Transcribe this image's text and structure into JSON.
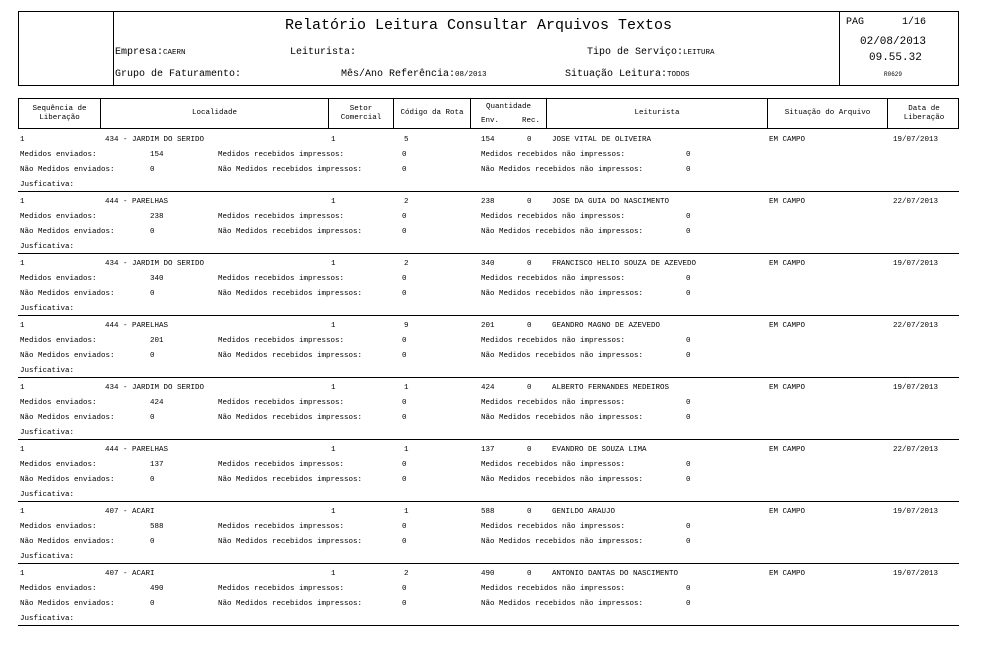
{
  "header": {
    "title": "Relatório Leitura Consultar Arquivos Textos",
    "empresa_label": "Empresa:",
    "empresa_value": "CAERN",
    "leiturista_label": "Leiturista:",
    "leiturista_value": "",
    "tipo_servico_label": "Tipo de Serviço:",
    "tipo_servico_value": "LEITURA",
    "grupo_label": "Grupo de Faturamento:",
    "grupo_value": "",
    "mes_ano_label": "Mês/Ano Referência:",
    "mes_ano_value": "08/2013",
    "situacao_label": "Situação Leitura:",
    "situacao_value": "TODOS",
    "pag_label": "PAG",
    "pag_value": "1/16",
    "date": "02/08/2013",
    "time": "09.55.32",
    "report_code": "R0629"
  },
  "columns": {
    "sequencia": "Sequência de Liberação",
    "localidade": "Localidade",
    "setor": "Setor Comercial",
    "codigo": "Código da Rota",
    "quantidade": "Quantidade",
    "env": "Env.",
    "rec": "Rec.",
    "leiturista": "Leiturista",
    "situacao": "Situação do Arquivo",
    "data": "Data de Liberação"
  },
  "labels": {
    "medidos_enviados": "Medidos enviados:",
    "nao_medidos_enviados": "Não Medidos enviados:",
    "medidos_rec_impressos": "Medidos recebidos impressos:",
    "nao_medidos_rec_impressos": "Não Medidos recebidos impressos:",
    "medidos_rec_nao_impressos": "Medidos recebidos não impressos:",
    "nao_medidos_rec_nao_impressos": "Não Medidos recebidos não impressos:",
    "justificativa": "Jusficativa:"
  },
  "records": [
    {
      "seq": "1",
      "localidade": "434 - JARDIM DO SERIDO",
      "setor": "1",
      "rota": "5",
      "env": "154",
      "rec": "0",
      "leiturista": "JOSE VITAL DE OLIVEIRA",
      "situacao": "EM CAMPO",
      "data": "19/07/2013",
      "med_env": "154",
      "nao_med_env": "0",
      "med_rec_imp": "0",
      "nao_med_rec_imp": "0",
      "med_rec_nao_imp": "0",
      "nao_med_rec_nao_imp": "0"
    },
    {
      "seq": "1",
      "localidade": "444 - PARELHAS",
      "setor": "1",
      "rota": "2",
      "env": "238",
      "rec": "0",
      "leiturista": "JOSE DA GUIA DO NASCIMENTO",
      "situacao": "EM CAMPO",
      "data": "22/07/2013",
      "med_env": "238",
      "nao_med_env": "0",
      "med_rec_imp": "0",
      "nao_med_rec_imp": "0",
      "med_rec_nao_imp": "0",
      "nao_med_rec_nao_imp": "0"
    },
    {
      "seq": "1",
      "localidade": "434 - JARDIM DO SERIDO",
      "setor": "1",
      "rota": "2",
      "env": "340",
      "rec": "0",
      "leiturista": "FRANCISCO HELIO SOUZA DE AZEVEDO",
      "situacao": "EM CAMPO",
      "data": "19/07/2013",
      "med_env": "340",
      "nao_med_env": "0",
      "med_rec_imp": "0",
      "nao_med_rec_imp": "0",
      "med_rec_nao_imp": "0",
      "nao_med_rec_nao_imp": "0"
    },
    {
      "seq": "1",
      "localidade": "444 - PARELHAS",
      "setor": "1",
      "rota": "9",
      "env": "201",
      "rec": "0",
      "leiturista": "GEANDRO MAGNO DE AZEVEDO",
      "situacao": "EM CAMPO",
      "data": "22/07/2013",
      "med_env": "201",
      "nao_med_env": "0",
      "med_rec_imp": "0",
      "nao_med_rec_imp": "0",
      "med_rec_nao_imp": "0",
      "nao_med_rec_nao_imp": "0"
    },
    {
      "seq": "1",
      "localidade": "434 - JARDIM DO SERIDO",
      "setor": "1",
      "rota": "1",
      "env": "424",
      "rec": "0",
      "leiturista": "ALBERTO FERNANDES MEDEIROS",
      "situacao": "EM CAMPO",
      "data": "19/07/2013",
      "med_env": "424",
      "nao_med_env": "0",
      "med_rec_imp": "0",
      "nao_med_rec_imp": "0",
      "med_rec_nao_imp": "0",
      "nao_med_rec_nao_imp": "0"
    },
    {
      "seq": "1",
      "localidade": "444 - PARELHAS",
      "setor": "1",
      "rota": "1",
      "env": "137",
      "rec": "0",
      "leiturista": "EVANDRO DE SOUZA LIMA",
      "situacao": "EM CAMPO",
      "data": "22/07/2013",
      "med_env": "137",
      "nao_med_env": "0",
      "med_rec_imp": "0",
      "nao_med_rec_imp": "0",
      "med_rec_nao_imp": "0",
      "nao_med_rec_nao_imp": "0"
    },
    {
      "seq": "1",
      "localidade": "407 - ACARI",
      "setor": "1",
      "rota": "1",
      "env": "588",
      "rec": "0",
      "leiturista": "GENILDO ARAUJO",
      "situacao": "EM CAMPO",
      "data": "19/07/2013",
      "med_env": "588",
      "nao_med_env": "0",
      "med_rec_imp": "0",
      "nao_med_rec_imp": "0",
      "med_rec_nao_imp": "0",
      "nao_med_rec_nao_imp": "0"
    },
    {
      "seq": "1",
      "localidade": "407 - ACARI",
      "setor": "1",
      "rota": "2",
      "env": "490",
      "rec": "0",
      "leiturista": "ANTONIO DANTAS DO NASCIMENTO",
      "situacao": "EM CAMPO",
      "data": "19/07/2013",
      "med_env": "490",
      "nao_med_env": "0",
      "med_rec_imp": "0",
      "nao_med_rec_imp": "0",
      "med_rec_nao_imp": "0",
      "nao_med_rec_nao_imp": "0"
    }
  ]
}
